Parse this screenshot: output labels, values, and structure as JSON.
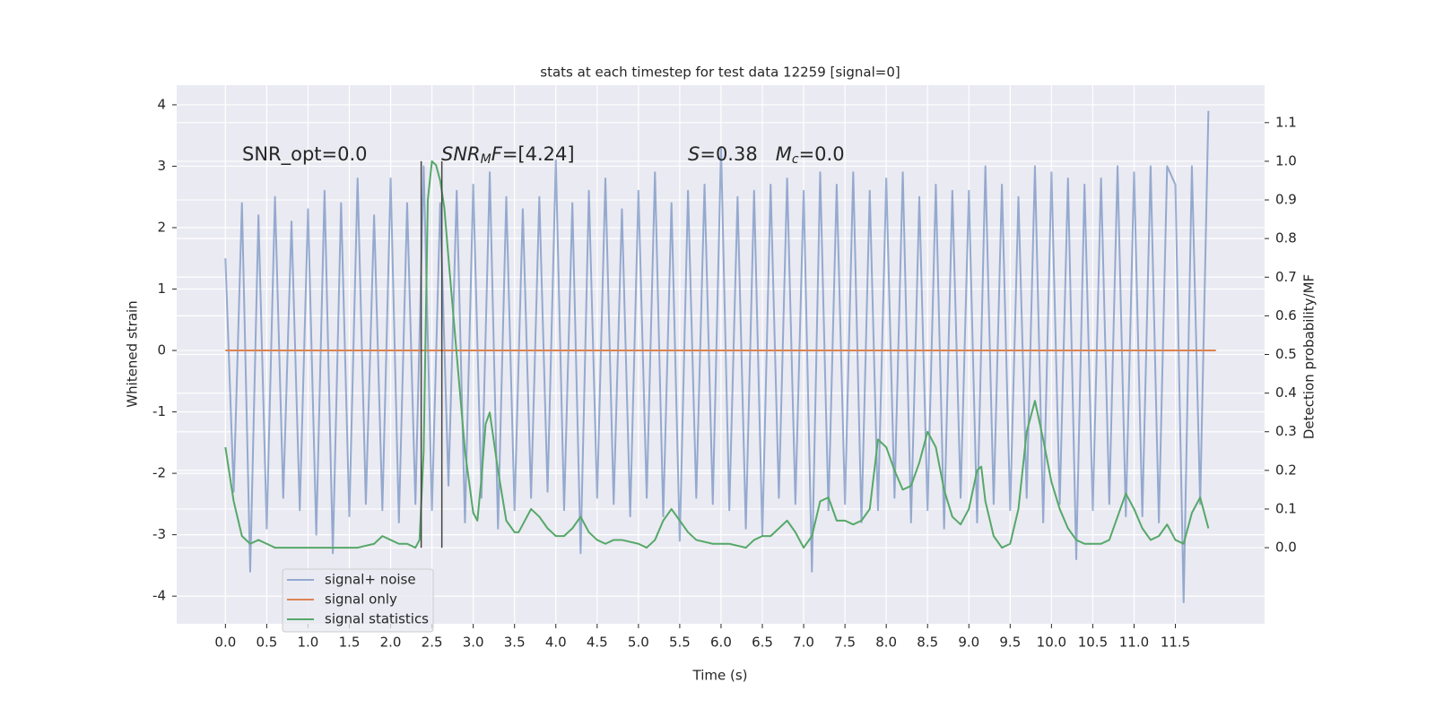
{
  "chart_data": {
    "type": "line",
    "title": "stats at each timestep for test data 12259 [signal=0]",
    "xlabel": "Time (s)",
    "ylabel": "Whitened strain",
    "y2label": "Detection probability/MF",
    "xlim": [
      -0.59,
      12.58
    ],
    "ylim": [
      -4.45,
      4.32
    ],
    "y2lim": [
      -0.197,
      1.197
    ],
    "xticks": [
      {
        "value": 0,
        "label": "0.0"
      },
      {
        "value": 0.5,
        "label": "0.5"
      },
      {
        "value": 1,
        "label": "1.0"
      },
      {
        "value": 1.5,
        "label": "1.5"
      },
      {
        "value": 2,
        "label": "2.0"
      },
      {
        "value": 2.5,
        "label": "2.5"
      },
      {
        "value": 3,
        "label": "3.0"
      },
      {
        "value": 3.5,
        "label": "3.5"
      },
      {
        "value": 4,
        "label": "4.0"
      },
      {
        "value": 4.5,
        "label": "4.5"
      },
      {
        "value": 5,
        "label": "5.0"
      },
      {
        "value": 5.5,
        "label": "5.5"
      },
      {
        "value": 6,
        "label": "6.0"
      },
      {
        "value": 6.5,
        "label": "6.5"
      },
      {
        "value": 7,
        "label": "7.0"
      },
      {
        "value": 7.5,
        "label": "7.5"
      },
      {
        "value": 8,
        "label": "8.0"
      },
      {
        "value": 8.5,
        "label": "8.5"
      },
      {
        "value": 9,
        "label": "9.0"
      },
      {
        "value": 9.5,
        "label": "9.5"
      },
      {
        "value": 10,
        "label": "10.0"
      },
      {
        "value": 10.5,
        "label": "10.5"
      },
      {
        "value": 11,
        "label": "11.0"
      },
      {
        "value": 11.5,
        "label": "11.5"
      }
    ],
    "yticks": [
      -4,
      -3,
      -2,
      -1,
      0,
      1,
      2,
      3,
      4
    ],
    "y2ticks": [
      {
        "value": 0,
        "label": "0.0"
      },
      {
        "value": 0.1,
        "label": "0.1"
      },
      {
        "value": 0.2,
        "label": "0.2"
      },
      {
        "value": 0.3,
        "label": "0.3"
      },
      {
        "value": 0.4,
        "label": "0.4"
      },
      {
        "value": 0.5,
        "label": "0.5"
      },
      {
        "value": 0.6,
        "label": "0.6"
      },
      {
        "value": 0.7,
        "label": "0.7"
      },
      {
        "value": 0.8,
        "label": "0.8"
      },
      {
        "value": 0.9,
        "label": "0.9"
      },
      {
        "value": 1,
        "label": "1.0"
      },
      {
        "value": 1.1,
        "label": "1.1"
      }
    ],
    "grid": true,
    "legend": "lower left",
    "series": [
      {
        "name": "signal+ noise",
        "color": "#4c72b0",
        "x": [
          0,
          0.1,
          0.2,
          0.3,
          0.4,
          0.5,
          0.6,
          0.7,
          0.8,
          0.9,
          1,
          1.1,
          1.2,
          1.3,
          1.4,
          1.5,
          1.6,
          1.7,
          1.8,
          1.9,
          2,
          2.1,
          2.2,
          2.3,
          2.4,
          2.5,
          2.6,
          2.7,
          2.8,
          2.9,
          3,
          3.1,
          3.2,
          3.3,
          3.4,
          3.5,
          3.6,
          3.7,
          3.8,
          3.9,
          4,
          4.1,
          4.2,
          4.3,
          4.4,
          4.5,
          4.6,
          4.7,
          4.8,
          4.9,
          5,
          5.1,
          5.2,
          5.3,
          5.4,
          5.5,
          5.6,
          5.7,
          5.8,
          5.9,
          6,
          6.1,
          6.2,
          6.3,
          6.4,
          6.5,
          6.6,
          6.7,
          6.8,
          6.9,
          7,
          7.1,
          7.2,
          7.3,
          7.4,
          7.5,
          7.6,
          7.7,
          7.8,
          7.9,
          8,
          8.1,
          8.2,
          8.3,
          8.4,
          8.5,
          8.6,
          8.7,
          8.8,
          8.9,
          9,
          9.1,
          9.2,
          9.3,
          9.4,
          9.5,
          9.6,
          9.7,
          9.8,
          9.9,
          10,
          10.1,
          10.2,
          10.3,
          10.4,
          10.5,
          10.6,
          10.7,
          10.8,
          10.9,
          11,
          11.1,
          11.2,
          11.3,
          11.4,
          11.5,
          11.6,
          11.7,
          11.8,
          11.9
        ],
        "values": [
          1.5,
          -2.3,
          2.4,
          -3.6,
          2.2,
          -2.9,
          2.5,
          -2.4,
          2.1,
          -2.6,
          2.3,
          -3.0,
          2.6,
          -3.3,
          2.4,
          -2.7,
          2.8,
          -2.5,
          2.2,
          -2.6,
          2.8,
          -2.8,
          2.4,
          -2.5,
          3.0,
          -2.6,
          2.4,
          -2.2,
          2.6,
          -2.8,
          2.7,
          -2.4,
          2.9,
          -2.9,
          2.5,
          -2.6,
          2.3,
          -2.4,
          2.5,
          -2.3,
          3.1,
          -2.6,
          2.4,
          -3.3,
          2.6,
          -2.4,
          2.8,
          -2.5,
          2.3,
          -2.7,
          2.6,
          -2.4,
          2.9,
          -2.7,
          2.4,
          -3.1,
          2.6,
          -2.4,
          2.7,
          -2.5,
          3.3,
          -2.6,
          2.5,
          -2.9,
          2.6,
          -3.0,
          2.7,
          -2.4,
          2.8,
          -2.5,
          2.6,
          -3.6,
          2.9,
          -2.6,
          2.7,
          -2.5,
          2.9,
          -2.8,
          2.6,
          -2.6,
          2.8,
          -2.4,
          2.9,
          -2.8,
          2.5,
          -2.6,
          2.7,
          -2.9,
          2.6,
          -2.4,
          2.6,
          -2.8,
          3.0,
          -2.5,
          2.7,
          -2.6,
          2.5,
          -2.4,
          3.0,
          -2.8,
          2.9,
          -2.5,
          2.8,
          -3.4,
          2.7,
          -2.6,
          2.8,
          -2.5,
          3.0,
          -2.7,
          2.9,
          -2.7,
          3.0,
          -2.8,
          3.0,
          2.7,
          -4.1,
          3.0,
          -2.5,
          3.9
        ]
      },
      {
        "name": "signal only",
        "color": "#dd8452",
        "x": [
          0,
          11.99
        ],
        "values": [
          0,
          0
        ]
      },
      {
        "name": "signal statistics",
        "color": "#55a868",
        "axis": "y2",
        "x": [
          0,
          0.1,
          0.2,
          0.3,
          0.4,
          0.5,
          0.6,
          0.8,
          1.0,
          1.2,
          1.4,
          1.6,
          1.8,
          1.9,
          2.0,
          2.1,
          2.2,
          2.3,
          2.35,
          2.4,
          2.45,
          2.5,
          2.55,
          2.6,
          2.65,
          2.7,
          2.8,
          2.9,
          3.0,
          3.05,
          3.1,
          3.15,
          3.2,
          3.3,
          3.4,
          3.5,
          3.55,
          3.6,
          3.7,
          3.8,
          3.9,
          4.0,
          4.1,
          4.2,
          4.3,
          4.4,
          4.5,
          4.6,
          4.7,
          4.8,
          5.0,
          5.1,
          5.2,
          5.3,
          5.4,
          5.5,
          5.6,
          5.7,
          5.9,
          6.1,
          6.3,
          6.4,
          6.5,
          6.6,
          6.7,
          6.8,
          6.9,
          7.0,
          7.1,
          7.2,
          7.3,
          7.4,
          7.5,
          7.6,
          7.7,
          7.8,
          7.9,
          8.0,
          8.1,
          8.2,
          8.3,
          8.4,
          8.5,
          8.6,
          8.7,
          8.8,
          8.9,
          9.0,
          9.1,
          9.15,
          9.2,
          9.3,
          9.4,
          9.5,
          9.6,
          9.7,
          9.8,
          9.9,
          10.0,
          10.1,
          10.2,
          10.3,
          10.4,
          10.5,
          10.6,
          10.7,
          10.8,
          10.9,
          11.0,
          11.1,
          11.2,
          11.3,
          11.4,
          11.5,
          11.6,
          11.7,
          11.8,
          11.9
        ],
        "values": [
          0.26,
          0.12,
          0.03,
          0.01,
          0.02,
          0.01,
          0.0,
          0.0,
          0.0,
          0.0,
          0.0,
          0.0,
          0.01,
          0.03,
          0.02,
          0.01,
          0.01,
          0.0,
          0.02,
          0.25,
          0.9,
          1.0,
          0.99,
          0.95,
          0.88,
          0.75,
          0.5,
          0.25,
          0.09,
          0.07,
          0.18,
          0.32,
          0.35,
          0.2,
          0.07,
          0.04,
          0.04,
          0.06,
          0.1,
          0.08,
          0.05,
          0.03,
          0.03,
          0.05,
          0.08,
          0.04,
          0.02,
          0.01,
          0.02,
          0.02,
          0.01,
          0.0,
          0.02,
          0.07,
          0.1,
          0.07,
          0.04,
          0.02,
          0.01,
          0.01,
          0.0,
          0.02,
          0.03,
          0.03,
          0.05,
          0.07,
          0.04,
          0.0,
          0.03,
          0.12,
          0.13,
          0.07,
          0.07,
          0.06,
          0.07,
          0.1,
          0.28,
          0.26,
          0.2,
          0.15,
          0.16,
          0.22,
          0.3,
          0.26,
          0.15,
          0.08,
          0.06,
          0.1,
          0.2,
          0.21,
          0.12,
          0.03,
          0.0,
          0.01,
          0.1,
          0.3,
          0.38,
          0.28,
          0.17,
          0.1,
          0.05,
          0.02,
          0.01,
          0.01,
          0.01,
          0.02,
          0.08,
          0.14,
          0.1,
          0.05,
          0.02,
          0.03,
          0.06,
          0.02,
          0.01,
          0.09,
          0.13,
          0.05
        ]
      }
    ],
    "vlines": {
      "x": [
        2.37,
        2.62
      ],
      "y2": [
        0,
        1
      ]
    },
    "annotations": [
      {
        "parts": [
          {
            "text": "SNR_opt=0.0"
          }
        ]
      },
      {
        "parts": [
          {
            "text": "SNR",
            "italic": true
          },
          {
            "text": "M",
            "italic": true,
            "sub": true
          },
          {
            "text": "F",
            "italic": true
          },
          {
            "text": "=[4.24]"
          }
        ]
      },
      {
        "parts": [
          {
            "text": "S",
            "italic": true
          },
          {
            "text": "=0.38   "
          },
          {
            "text": "M",
            "italic": true
          },
          {
            "text": "c",
            "italic": true,
            "sub": true
          },
          {
            "text": "=0.0"
          }
        ]
      }
    ]
  }
}
